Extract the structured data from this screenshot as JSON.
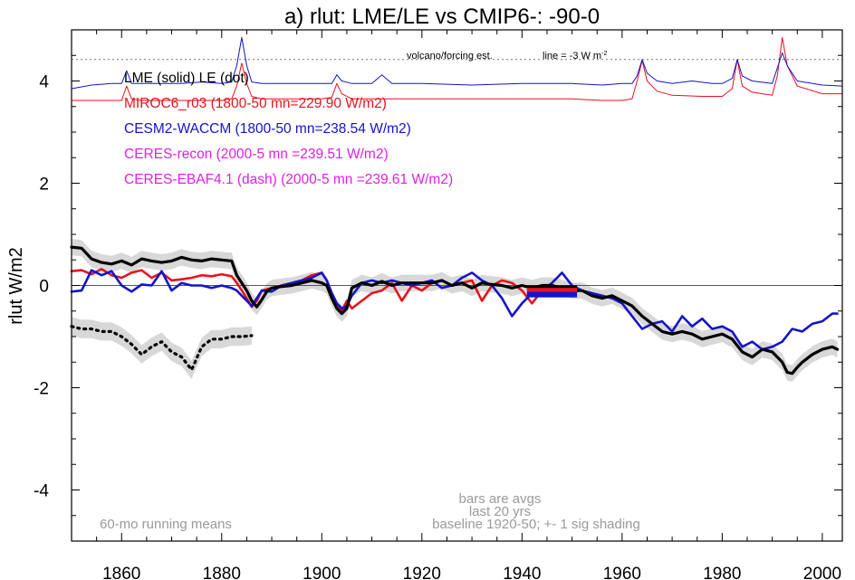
{
  "chart_data": {
    "type": "line",
    "title": "a) rlut: LME/LE vs CMIP6-: -90-0",
    "ylabel": "rlut W/m2",
    "xlabel": "",
    "xlim": [
      1850,
      2004
    ],
    "ylim": [
      -5,
      5
    ],
    "xticks": [
      "1860",
      "1880",
      "1900",
      "1920",
      "1940",
      "1960",
      "1980",
      "2000"
    ],
    "yticks": [
      "-4",
      "-2",
      "0",
      "2",
      "4"
    ],
    "legend": [
      {
        "text": "LME (solid)   LE (dot)",
        "color": "#000000"
      },
      {
        "text": "MIROC6_r03 (1800-50 mn=229.90 W/m2)",
        "color": "#e8121c"
      },
      {
        "text": "CESM2-WACCM (1800-50 mn=238.54 W/m2)",
        "color": "#1414c8"
      },
      {
        "text": "CERES-recon (2000-5 mn =239.51 W/m2)",
        "color": "#e020e0"
      },
      {
        "text": "CERES-EBAF4.1 (dash) (2000-5 mn =239.61 W/m2)",
        "color": "#e020e0"
      }
    ],
    "annotations": {
      "volcano": "volcano/forcing est.",
      "line": "line = -3 W m",
      "line_sup": "-2",
      "bars": "bars are avgs",
      "last20": "last 20 yrs",
      "baseline": "baseline 1920-50; +- 1 sig shading",
      "running": "60-mo running means"
    },
    "volcano_ref": 4.42,
    "series": [
      {
        "name": "LME",
        "color": "#000000",
        "x": [
          1850,
          1852,
          1854,
          1856,
          1858,
          1860,
          1862,
          1864,
          1866,
          1868,
          1870,
          1872,
          1874,
          1876,
          1878,
          1880,
          1882,
          1883,
          1884,
          1885,
          1886,
          1887,
          1888,
          1889,
          1890,
          1892,
          1894,
          1896,
          1898,
          1900,
          1901,
          1902,
          1903,
          1904,
          1905,
          1906,
          1908,
          1910,
          1912,
          1914,
          1916,
          1918,
          1920,
          1922,
          1924,
          1926,
          1928,
          1930,
          1932,
          1934,
          1936,
          1938,
          1940,
          1942,
          1944,
          1946,
          1948,
          1950,
          1952,
          1954,
          1956,
          1958,
          1960,
          1962,
          1964,
          1966,
          1968,
          1970,
          1972,
          1974,
          1976,
          1978,
          1980,
          1982,
          1984,
          1986,
          1988,
          1990,
          1992,
          1993,
          1994,
          1995,
          1996,
          1998,
          2000,
          2002,
          2003
        ],
        "values": [
          0.75,
          0.73,
          0.52,
          0.45,
          0.42,
          0.48,
          0.4,
          0.52,
          0.48,
          0.45,
          0.48,
          0.55,
          0.5,
          0.48,
          0.52,
          0.5,
          0.48,
          0.2,
          0.05,
          -0.1,
          -0.3,
          -0.42,
          -0.28,
          -0.12,
          -0.05,
          -0.02,
          0.0,
          0.05,
          0.1,
          0.05,
          0.0,
          -0.25,
          -0.45,
          -0.55,
          -0.45,
          -0.05,
          0.05,
          0.0,
          0.08,
          0.0,
          0.05,
          0.05,
          0.05,
          0.05,
          0.1,
          0.0,
          0.05,
          -0.05,
          0.05,
          0.02,
          0.0,
          -0.05,
          0.0,
          -0.05,
          0.0,
          0.0,
          -0.05,
          -0.1,
          -0.1,
          -0.2,
          -0.25,
          -0.2,
          -0.3,
          -0.4,
          -0.6,
          -0.75,
          -0.9,
          -0.95,
          -0.9,
          -0.95,
          -1.05,
          -1.0,
          -0.95,
          -1.05,
          -1.3,
          -1.4,
          -1.25,
          -1.3,
          -1.5,
          -1.7,
          -1.72,
          -1.6,
          -1.5,
          -1.35,
          -1.25,
          -1.2,
          -1.25
        ]
      },
      {
        "name": "LE",
        "color": "#000000",
        "x": [
          1850,
          1852,
          1854,
          1856,
          1858,
          1860,
          1862,
          1864,
          1866,
          1868,
          1870,
          1872,
          1874,
          1876,
          1878,
          1880,
          1882,
          1884,
          1886
        ],
        "values": [
          -0.8,
          -0.85,
          -0.85,
          -0.9,
          -0.9,
          -1.0,
          -1.15,
          -1.35,
          -1.2,
          -1.1,
          -1.3,
          -1.4,
          -1.65,
          -1.2,
          -1.05,
          -1.05,
          -1.0,
          -1.0,
          -0.98
        ]
      },
      {
        "name": "MIROC6_r03",
        "color": "#e8121c",
        "x": [
          1850,
          1852,
          1854,
          1856,
          1858,
          1860,
          1862,
          1864,
          1866,
          1868,
          1870,
          1872,
          1874,
          1876,
          1878,
          1880,
          1882,
          1883,
          1884,
          1885,
          1886,
          1887,
          1888,
          1890,
          1892,
          1894,
          1896,
          1898,
          1900,
          1901,
          1902,
          1903,
          1904,
          1905,
          1906,
          1908,
          1910,
          1912,
          1914,
          1916,
          1918,
          1920,
          1922,
          1924,
          1926,
          1928,
          1930,
          1932,
          1934,
          1936,
          1938,
          1940,
          1942,
          1944,
          1946,
          1948,
          1950
        ],
        "values": [
          0.28,
          0.3,
          0.22,
          0.32,
          0.2,
          0.15,
          0.25,
          0.3,
          0.15,
          0.25,
          0.1,
          0.12,
          0.15,
          0.2,
          0.18,
          0.22,
          0.18,
          0.05,
          -0.1,
          -0.25,
          -0.42,
          -0.3,
          -0.1,
          -0.05,
          0.0,
          0.05,
          0.1,
          0.2,
          0.25,
          0.1,
          -0.25,
          -0.4,
          -0.5,
          -0.3,
          -0.45,
          -0.3,
          -0.15,
          -0.1,
          0.05,
          -0.3,
          0.0,
          -0.1,
          0.05,
          0.1,
          0.0,
          0.05,
          0.1,
          -0.3,
          0.0,
          0.1,
          0.05,
          -0.1,
          -0.35,
          -0.1,
          -0.1,
          -0.05,
          -0.05
        ]
      },
      {
        "name": "CESM2-WACCM",
        "color": "#1414c8",
        "x": [
          1850,
          1852,
          1854,
          1856,
          1858,
          1860,
          1862,
          1864,
          1866,
          1868,
          1870,
          1872,
          1874,
          1876,
          1878,
          1880,
          1882,
          1883,
          1884,
          1885,
          1886,
          1887,
          1888,
          1890,
          1892,
          1894,
          1896,
          1898,
          1900,
          1901,
          1902,
          1903,
          1904,
          1905,
          1906,
          1908,
          1910,
          1912,
          1914,
          1916,
          1918,
          1920,
          1922,
          1924,
          1926,
          1928,
          1930,
          1932,
          1934,
          1936,
          1938,
          1940,
          1942,
          1944,
          1946,
          1948,
          1950,
          1952,
          1954,
          1956,
          1958,
          1960,
          1962,
          1964,
          1966,
          1968,
          1970,
          1972,
          1974,
          1976,
          1978,
          1980,
          1982,
          1984,
          1986,
          1988,
          1990,
          1992,
          1994,
          1996,
          1998,
          2000,
          2002,
          2003
        ],
        "values": [
          -0.12,
          -0.1,
          0.3,
          0.2,
          0.28,
          0.0,
          -0.12,
          0.02,
          0.0,
          0.28,
          -0.1,
          0.05,
          0.0,
          0.0,
          -0.05,
          0.0,
          -0.05,
          -0.1,
          -0.2,
          -0.3,
          -0.4,
          -0.25,
          -0.1,
          -0.12,
          0.0,
          0.05,
          0.1,
          0.15,
          0.25,
          0.1,
          -0.15,
          -0.35,
          -0.45,
          -0.4,
          -0.2,
          0.05,
          0.1,
          0.05,
          0.1,
          0.05,
          0.0,
          0.05,
          0.1,
          -0.05,
          0.0,
          0.15,
          0.25,
          0.1,
          0.0,
          -0.25,
          -0.6,
          -0.35,
          -0.15,
          -0.1,
          0.05,
          0.25,
          0.0,
          -0.1,
          -0.15,
          -0.2,
          -0.25,
          -0.35,
          -0.6,
          -0.85,
          -0.75,
          -0.7,
          -0.9,
          -0.6,
          -0.8,
          -0.65,
          -0.85,
          -0.8,
          -0.9,
          -1.2,
          -1.1,
          -1.25,
          -1.2,
          -1.1,
          -0.85,
          -0.9,
          -0.75,
          -0.7,
          -0.55,
          -0.55
        ]
      },
      {
        "name": "CESM2-WACCM forcing",
        "color": "#1414c8",
        "x": [
          1850,
          1854,
          1858,
          1860,
          1861,
          1862,
          1864,
          1868,
          1872,
          1876,
          1880,
          1882,
          1883,
          1884,
          1885,
          1886,
          1888,
          1892,
          1896,
          1900,
          1902,
          1903,
          1904,
          1906,
          1910,
          1912,
          1914,
          1920,
          1930,
          1940,
          1950,
          1956,
          1960,
          1962,
          1963,
          1964,
          1965,
          1967,
          1970,
          1974,
          1978,
          1980,
          1982,
          1983,
          1984,
          1986,
          1990,
          1991,
          1992,
          1993,
          1995,
          2000,
          2004
        ],
        "values": [
          3.85,
          3.92,
          3.95,
          3.95,
          4.2,
          3.95,
          3.95,
          3.95,
          3.95,
          3.98,
          3.95,
          3.98,
          4.3,
          4.85,
          4.3,
          3.98,
          3.95,
          3.95,
          3.95,
          3.95,
          3.95,
          4.12,
          4.0,
          3.95,
          3.95,
          4.12,
          3.95,
          3.95,
          3.92,
          3.95,
          3.95,
          3.92,
          3.95,
          3.95,
          4.1,
          4.42,
          4.15,
          4.0,
          3.95,
          4.0,
          3.95,
          3.95,
          4.05,
          4.42,
          4.1,
          4.0,
          3.95,
          4.25,
          4.55,
          4.3,
          4.0,
          3.92,
          3.9
        ]
      },
      {
        "name": "MIROC6 forcing",
        "color": "#e8121c",
        "x": [
          1850,
          1858,
          1860,
          1861,
          1862,
          1864,
          1870,
          1876,
          1880,
          1882,
          1883,
          1884,
          1885,
          1886,
          1888,
          1896,
          1900,
          1902,
          1903,
          1904,
          1906,
          1914,
          1930,
          1950,
          1956,
          1960,
          1962,
          1963,
          1964,
          1965,
          1967,
          1970,
          1976,
          1980,
          1982,
          1983,
          1984,
          1986,
          1990,
          1991,
          1992,
          1993,
          1995,
          2000,
          2004
        ],
        "values": [
          3.62,
          3.62,
          3.62,
          3.9,
          3.65,
          3.62,
          3.62,
          3.62,
          3.62,
          3.65,
          3.9,
          4.35,
          3.95,
          3.7,
          3.65,
          3.65,
          3.65,
          3.68,
          3.95,
          3.75,
          3.65,
          3.65,
          3.65,
          3.65,
          3.62,
          3.62,
          3.65,
          4.0,
          4.4,
          4.0,
          3.8,
          3.72,
          3.7,
          3.7,
          3.85,
          4.42,
          3.9,
          3.78,
          3.72,
          4.1,
          4.85,
          4.3,
          3.9,
          3.75,
          3.75
        ]
      }
    ],
    "bars": [
      {
        "name": "LME avg",
        "color": "#000000",
        "x": [
          1941,
          1951
        ],
        "value": -0.05
      },
      {
        "name": "MIROC6 avg",
        "color": "#e8121c",
        "x": [
          1941,
          1951
        ],
        "value": -0.1
      },
      {
        "name": "CESM2 avg",
        "color": "#1414c8",
        "x": [
          1941,
          1951
        ],
        "value": -0.18
      }
    ]
  }
}
